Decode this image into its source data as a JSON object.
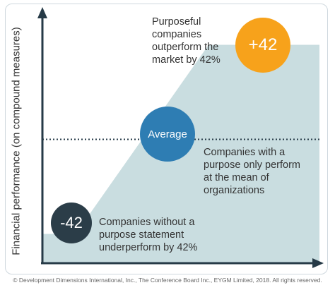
{
  "chart_data": {
    "type": "area",
    "ylabel": "Financial performance (on compound measures)",
    "xlabel": "",
    "ylim": [
      -55,
      55
    ],
    "reference_line": {
      "label": "Average",
      "value": 0
    },
    "series": [
      {
        "x": [
          0,
          0.12,
          0.6,
          0.75,
          1
        ],
        "values": [
          -42,
          -42,
          42,
          42,
          42
        ]
      }
    ],
    "points": [
      {
        "label": "+42",
        "value": 42,
        "text": "Purposeful companies outperform the market by 42%"
      },
      {
        "label": "Average",
        "value": 0,
        "text": "Companies with a purpose only perform at the mean of organizations"
      },
      {
        "label": "-42",
        "value": -42,
        "text": "Companies without a purpose statement underperform by 42%"
      }
    ],
    "fill_color": "#c9dde0",
    "dotted_line_color": "#263a47",
    "axis_color": "#263a47"
  },
  "notes": {
    "top": "Purposeful\ncompanies\noutperform the\nmarket by 42%",
    "mid": "Companies with a\npurpose only perform\nat the mean of\norganizations",
    "bottom": "Companies without a\npurpose statement\nunderperform by 42%"
  },
  "bubbles": {
    "positive": "+42",
    "average": "Average",
    "negative": "-42"
  },
  "credit": "© Development Dimensions International, Inc., The Conference Board Inc., EYGM Limited, 2018. All rights reserved."
}
